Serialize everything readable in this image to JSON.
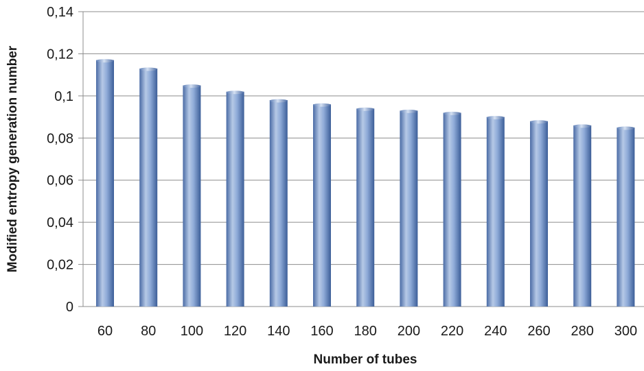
{
  "chart_data": {
    "type": "bar",
    "title": "",
    "xlabel": "Number of tubes",
    "ylabel": "Modified entropy generation number",
    "categories": [
      "60",
      "80",
      "100",
      "120",
      "140",
      "160",
      "180",
      "200",
      "220",
      "240",
      "260",
      "280",
      "300"
    ],
    "values": [
      0.117,
      0.113,
      0.105,
      0.102,
      0.098,
      0.096,
      0.094,
      0.093,
      0.092,
      0.09,
      0.088,
      0.086,
      0.085
    ],
    "ylim": [
      0,
      0.14
    ],
    "yticks": [
      0,
      0.02,
      0.04,
      0.06,
      0.08,
      0.1,
      0.12,
      0.14
    ],
    "ytick_labels": [
      "0",
      "0,02",
      "0,04",
      "0,06",
      "0,08",
      "0,1",
      "0,12",
      "0,14"
    ],
    "grid": true,
    "legend": "none",
    "colors": {
      "bar_light": "#b8cce4",
      "bar_mid": "#7f9fd0",
      "bar_dark": "#3c5e98",
      "gridline": "#8c8c8c",
      "axis": "#8c8c8c"
    }
  }
}
